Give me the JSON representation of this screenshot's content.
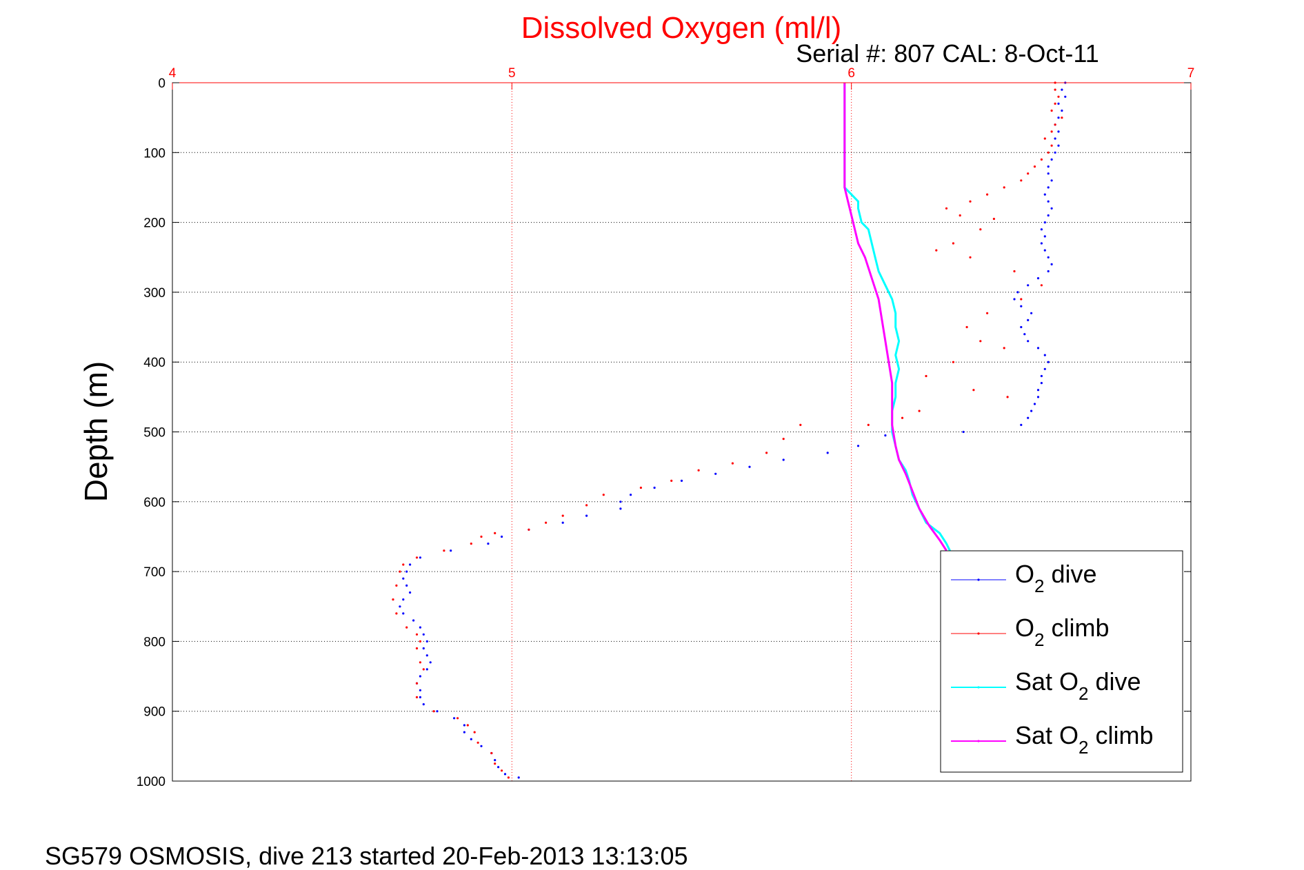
{
  "chart_data": {
    "type": "scatter",
    "title": "Dissolved Oxygen (ml/l)",
    "subtitle": "Serial #: 807  CAL: 8-Oct-11",
    "xlabel_ticks": [
      "4",
      "5",
      "6",
      "7"
    ],
    "ylabel": "Depth (m)",
    "xlim": [
      4,
      7
    ],
    "ylim": [
      0,
      1000
    ],
    "y_reversed": true,
    "x_axis_position": "top",
    "xticks": [
      4,
      5,
      6,
      7
    ],
    "yticks": [
      0,
      100,
      200,
      300,
      400,
      500,
      600,
      700,
      800,
      900,
      1000
    ],
    "ytick_labels": [
      "0",
      "100",
      "200",
      "300",
      "400",
      "500",
      "600",
      "700",
      "800",
      "900",
      "1000"
    ],
    "grid": true,
    "legend_position": "bottom-right",
    "colors": {
      "title": "#ff0000",
      "xticks": "#ff0000",
      "xgrid": "#ff0000",
      "ygrid": "#000000"
    },
    "series": [
      {
        "name": "O2 dive",
        "legend_main": "O",
        "legend_sub": "2",
        "legend_rest": " dive",
        "color": "#0000ff",
        "style": "dots",
        "points": [
          [
            6.63,
            0
          ],
          [
            6.62,
            10
          ],
          [
            6.63,
            20
          ],
          [
            6.61,
            30
          ],
          [
            6.62,
            40
          ],
          [
            6.61,
            50
          ],
          [
            6.6,
            60
          ],
          [
            6.61,
            70
          ],
          [
            6.6,
            80
          ],
          [
            6.61,
            90
          ],
          [
            6.6,
            100
          ],
          [
            6.59,
            110
          ],
          [
            6.58,
            120
          ],
          [
            6.58,
            130
          ],
          [
            6.59,
            140
          ],
          [
            6.58,
            150
          ],
          [
            6.57,
            160
          ],
          [
            6.58,
            170
          ],
          [
            6.59,
            180
          ],
          [
            6.58,
            190
          ],
          [
            6.57,
            200
          ],
          [
            6.56,
            210
          ],
          [
            6.57,
            220
          ],
          [
            6.56,
            230
          ],
          [
            6.57,
            240
          ],
          [
            6.58,
            250
          ],
          [
            6.59,
            260
          ],
          [
            6.58,
            270
          ],
          [
            6.55,
            280
          ],
          [
            6.52,
            290
          ],
          [
            6.49,
            300
          ],
          [
            6.48,
            310
          ],
          [
            6.5,
            320
          ],
          [
            6.53,
            330
          ],
          [
            6.52,
            340
          ],
          [
            6.5,
            350
          ],
          [
            6.51,
            360
          ],
          [
            6.52,
            370
          ],
          [
            6.55,
            380
          ],
          [
            6.57,
            390
          ],
          [
            6.58,
            400
          ],
          [
            6.57,
            410
          ],
          [
            6.56,
            420
          ],
          [
            6.56,
            430
          ],
          [
            6.55,
            440
          ],
          [
            6.55,
            450
          ],
          [
            6.54,
            460
          ],
          [
            6.53,
            470
          ],
          [
            6.52,
            480
          ],
          [
            6.5,
            490
          ],
          [
            6.33,
            500
          ],
          [
            6.1,
            505
          ],
          [
            6.02,
            520
          ],
          [
            5.93,
            530
          ],
          [
            5.8,
            540
          ],
          [
            5.7,
            550
          ],
          [
            5.6,
            560
          ],
          [
            5.5,
            570
          ],
          [
            5.42,
            580
          ],
          [
            5.35,
            590
          ],
          [
            5.32,
            600
          ],
          [
            5.32,
            610
          ],
          [
            5.22,
            620
          ],
          [
            5.15,
            630
          ],
          [
            5.05,
            640
          ],
          [
            4.97,
            650
          ],
          [
            4.93,
            660
          ],
          [
            4.82,
            670
          ],
          [
            4.73,
            680
          ],
          [
            4.7,
            690
          ],
          [
            4.69,
            700
          ],
          [
            4.68,
            710
          ],
          [
            4.69,
            720
          ],
          [
            4.7,
            730
          ],
          [
            4.68,
            740
          ],
          [
            4.67,
            750
          ],
          [
            4.68,
            760
          ],
          [
            4.71,
            770
          ],
          [
            4.73,
            780
          ],
          [
            4.74,
            790
          ],
          [
            4.75,
            800
          ],
          [
            4.74,
            810
          ],
          [
            4.75,
            820
          ],
          [
            4.76,
            830
          ],
          [
            4.75,
            840
          ],
          [
            4.73,
            850
          ],
          [
            4.72,
            860
          ],
          [
            4.73,
            870
          ],
          [
            4.73,
            880
          ],
          [
            4.74,
            890
          ],
          [
            4.78,
            900
          ],
          [
            4.83,
            910
          ],
          [
            4.86,
            920
          ],
          [
            4.86,
            930
          ],
          [
            4.88,
            940
          ],
          [
            4.91,
            950
          ],
          [
            4.94,
            960
          ],
          [
            4.95,
            970
          ],
          [
            4.96,
            980
          ],
          [
            4.98,
            990
          ],
          [
            5.02,
            995
          ]
        ]
      },
      {
        "name": "O2 climb",
        "legend_main": "O",
        "legend_sub": "2",
        "legend_rest": " climb",
        "color": "#ff0000",
        "style": "dots",
        "points": [
          [
            6.6,
            0
          ],
          [
            6.6,
            10
          ],
          [
            6.61,
            20
          ],
          [
            6.6,
            30
          ],
          [
            6.59,
            40
          ],
          [
            6.62,
            50
          ],
          [
            6.6,
            60
          ],
          [
            6.59,
            70
          ],
          [
            6.57,
            80
          ],
          [
            6.59,
            90
          ],
          [
            6.58,
            100
          ],
          [
            6.56,
            110
          ],
          [
            6.54,
            120
          ],
          [
            6.52,
            130
          ],
          [
            6.5,
            140
          ],
          [
            6.45,
            150
          ],
          [
            6.4,
            160
          ],
          [
            6.35,
            170
          ],
          [
            6.28,
            180
          ],
          [
            6.32,
            190
          ],
          [
            6.42,
            195
          ],
          [
            6.38,
            210
          ],
          [
            6.3,
            230
          ],
          [
            6.25,
            240
          ],
          [
            6.35,
            250
          ],
          [
            6.48,
            270
          ],
          [
            6.56,
            290
          ],
          [
            6.5,
            310
          ],
          [
            6.4,
            330
          ],
          [
            6.34,
            350
          ],
          [
            6.38,
            370
          ],
          [
            6.45,
            380
          ],
          [
            6.3,
            400
          ],
          [
            6.22,
            420
          ],
          [
            6.36,
            440
          ],
          [
            6.46,
            450
          ],
          [
            6.2,
            470
          ],
          [
            6.15,
            480
          ],
          [
            6.05,
            490
          ],
          [
            5.85,
            490
          ],
          [
            5.8,
            510
          ],
          [
            5.75,
            530
          ],
          [
            5.65,
            545
          ],
          [
            5.55,
            555
          ],
          [
            5.47,
            570
          ],
          [
            5.38,
            580
          ],
          [
            5.27,
            590
          ],
          [
            5.22,
            605
          ],
          [
            5.15,
            620
          ],
          [
            5.1,
            630
          ],
          [
            5.05,
            640
          ],
          [
            4.95,
            645
          ],
          [
            4.91,
            650
          ],
          [
            4.88,
            660
          ],
          [
            4.8,
            670
          ],
          [
            4.72,
            680
          ],
          [
            4.68,
            690
          ],
          [
            4.67,
            700
          ],
          [
            4.66,
            720
          ],
          [
            4.65,
            740
          ],
          [
            4.66,
            760
          ],
          [
            4.69,
            780
          ],
          [
            4.72,
            790
          ],
          [
            4.73,
            800
          ],
          [
            4.72,
            810
          ],
          [
            4.73,
            830
          ],
          [
            4.74,
            840
          ],
          [
            4.72,
            860
          ],
          [
            4.72,
            880
          ],
          [
            4.77,
            900
          ],
          [
            4.84,
            910
          ],
          [
            4.87,
            920
          ],
          [
            4.89,
            930
          ],
          [
            4.9,
            945
          ],
          [
            4.94,
            960
          ],
          [
            4.95,
            975
          ],
          [
            4.97,
            985
          ],
          [
            4.99,
            995
          ]
        ]
      },
      {
        "name": "Sat O2 dive",
        "legend_main": "Sat O",
        "legend_sub": "2",
        "legend_rest": " dive",
        "color": "#00ffff",
        "style": "line",
        "points": [
          [
            5.98,
            0
          ],
          [
            5.98,
            50
          ],
          [
            5.98,
            100
          ],
          [
            5.98,
            150
          ],
          [
            6.0,
            160
          ],
          [
            6.02,
            170
          ],
          [
            6.02,
            180
          ],
          [
            6.03,
            200
          ],
          [
            6.05,
            210
          ],
          [
            6.06,
            230
          ],
          [
            6.07,
            250
          ],
          [
            6.08,
            270
          ],
          [
            6.1,
            290
          ],
          [
            6.12,
            310
          ],
          [
            6.13,
            330
          ],
          [
            6.13,
            350
          ],
          [
            6.14,
            370
          ],
          [
            6.13,
            390
          ],
          [
            6.14,
            410
          ],
          [
            6.13,
            430
          ],
          [
            6.13,
            450
          ],
          [
            6.12,
            470
          ],
          [
            6.12,
            500
          ],
          [
            6.13,
            520
          ],
          [
            6.14,
            540
          ],
          [
            6.16,
            555
          ],
          [
            6.17,
            570
          ],
          [
            6.18,
            590
          ],
          [
            6.2,
            610
          ],
          [
            6.22,
            630
          ],
          [
            6.26,
            645
          ],
          [
            6.28,
            660
          ],
          [
            6.3,
            680
          ]
        ]
      },
      {
        "name": "Sat O2 climb",
        "legend_main": "Sat O",
        "legend_sub": "2",
        "legend_rest": " climb",
        "color": "#ff00ff",
        "style": "line",
        "points": [
          [
            5.98,
            0
          ],
          [
            5.98,
            50
          ],
          [
            5.98,
            100
          ],
          [
            5.98,
            150
          ],
          [
            5.99,
            170
          ],
          [
            6.0,
            190
          ],
          [
            6.01,
            210
          ],
          [
            6.02,
            230
          ],
          [
            6.04,
            250
          ],
          [
            6.06,
            280
          ],
          [
            6.08,
            310
          ],
          [
            6.09,
            340
          ],
          [
            6.1,
            370
          ],
          [
            6.11,
            400
          ],
          [
            6.12,
            430
          ],
          [
            6.12,
            460
          ],
          [
            6.12,
            490
          ],
          [
            6.13,
            520
          ],
          [
            6.14,
            540
          ],
          [
            6.16,
            560
          ],
          [
            6.18,
            585
          ],
          [
            6.2,
            610
          ],
          [
            6.23,
            635
          ],
          [
            6.26,
            655
          ],
          [
            6.28,
            670
          ]
        ]
      }
    ]
  },
  "footer": "SG579 OSMOSIS, dive 213 started 20-Feb-2013 13:13:05"
}
